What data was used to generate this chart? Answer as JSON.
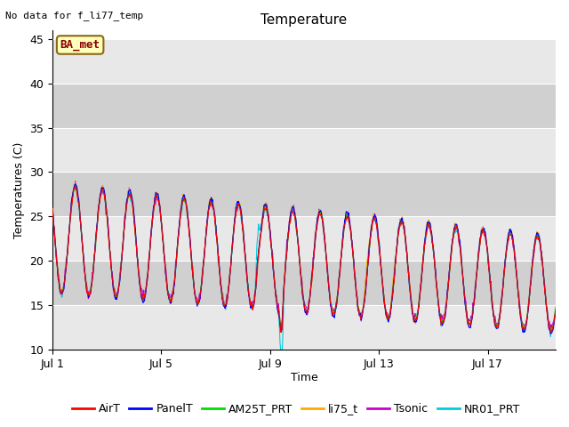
{
  "title": "Temperature",
  "xlabel": "Time",
  "ylabel": "Temperatures (C)",
  "no_data_text": "No data for f_li77_temp",
  "ba_met_label": "BA_met",
  "ylim": [
    10,
    46
  ],
  "yticks": [
    10,
    15,
    20,
    25,
    30,
    35,
    40,
    45
  ],
  "xtick_labels": [
    "Jul 1",
    "Jul 5",
    "Jul 9",
    "Jul 13",
    "Jul 17"
  ],
  "xtick_positions": [
    0,
    4,
    8,
    12,
    16
  ],
  "n_days": 18.5,
  "series": {
    "AirT": {
      "color": "#ff0000"
    },
    "PanelT": {
      "color": "#0000ff"
    },
    "AM25T_PRT": {
      "color": "#00dd00"
    },
    "li75_t": {
      "color": "#ffaa00"
    },
    "Tsonic": {
      "color": "#cc00cc"
    },
    "NR01_PRT": {
      "color": "#00ccdd"
    }
  },
  "plot_bg_light": "#e8e8e8",
  "plot_bg_dark": "#d0d0d0",
  "grid_color": "#ffffff",
  "title_fontsize": 11,
  "label_fontsize": 9,
  "tick_fontsize": 9,
  "legend_fontsize": 9,
  "figsize": [
    6.4,
    4.8
  ],
  "dpi": 100
}
